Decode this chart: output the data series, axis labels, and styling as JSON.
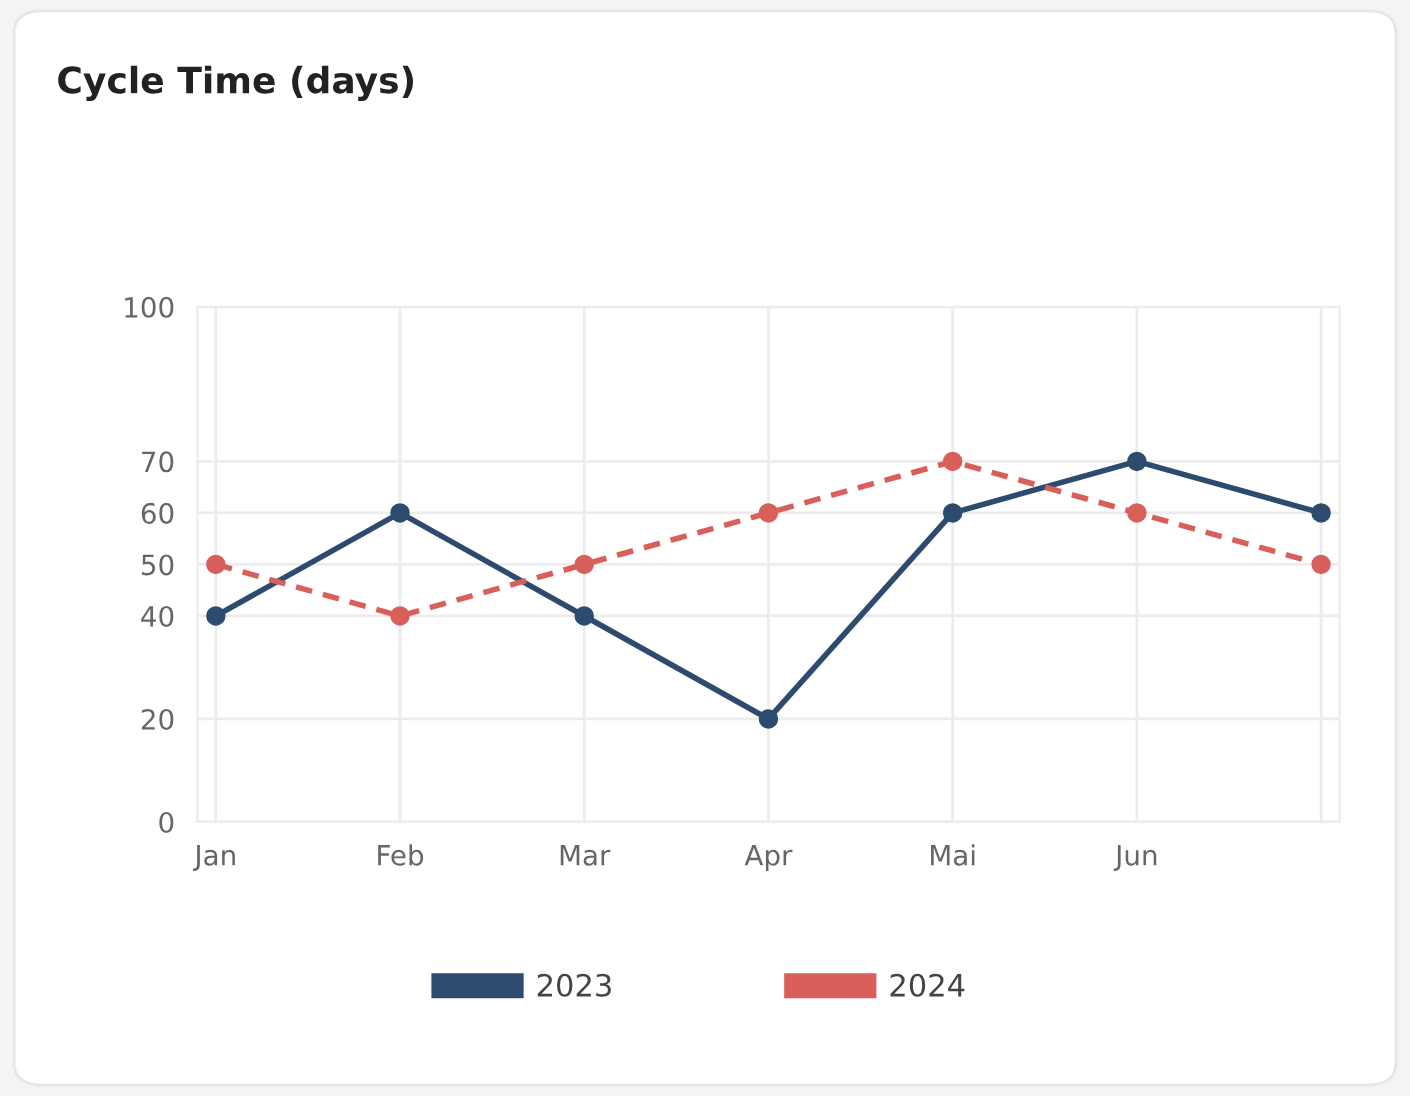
{
  "chart_data": {
    "type": "line",
    "title": "Cycle Time (days)",
    "categories": [
      "Jan",
      "Feb",
      "Mar",
      "Apr",
      "Mai",
      "Jun",
      null
    ],
    "series": [
      {
        "name": "2023",
        "color": "#2d4b6e",
        "values": [
          40,
          60,
          40,
          20,
          60,
          70,
          60
        ],
        "line_style": "solid"
      },
      {
        "name": "2024",
        "color": "#d9605a",
        "values": [
          50,
          40,
          50,
          60,
          70,
          60,
          50
        ],
        "line_style": "dashed"
      }
    ],
    "ylim": [
      0,
      100
    ],
    "yticks": [
      0,
      20,
      40,
      50,
      60,
      70,
      100
    ],
    "marker": "circle",
    "grid": true,
    "legend": "bottom"
  }
}
